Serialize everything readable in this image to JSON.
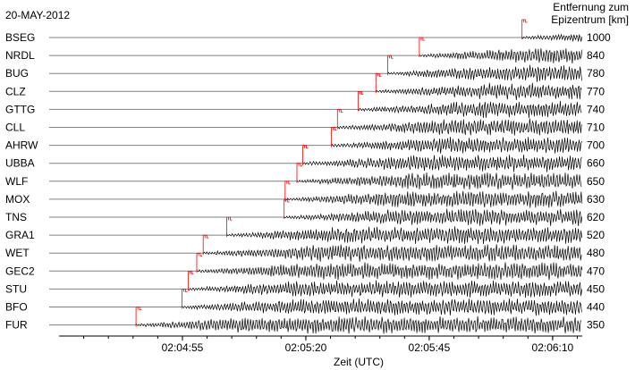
{
  "chart_data": {
    "type": "line",
    "date": "20-MAY-2012",
    "header_line1": "Entfernung zum",
    "header_line2": "Epizentrum [km]",
    "xlabel": "Zeit (UTC)",
    "x_ticks": [
      "02:04:55",
      "02:05:20",
      "02:05:45",
      "02:06:10"
    ],
    "x_tick_seconds": [
      55,
      80,
      105,
      130
    ],
    "xlim_seconds": [
      30,
      136
    ],
    "minor_tick_step_seconds": 5,
    "stations": [
      {
        "name": "BSEG",
        "distance_km": "1000",
        "p_arrival_s": 123.8
      },
      {
        "name": "NRDL",
        "distance_km": "840",
        "p_arrival_s": 103.0
      },
      {
        "name": "BUG",
        "distance_km": "780",
        "p_arrival_s": 96.6
      },
      {
        "name": "CLZ",
        "distance_km": "770",
        "p_arrival_s": 94.2
      },
      {
        "name": "GTTG",
        "distance_km": "740",
        "p_arrival_s": 90.6
      },
      {
        "name": "CLL",
        "distance_km": "710",
        "p_arrival_s": 86.4
      },
      {
        "name": "AHRW",
        "distance_km": "700",
        "p_arrival_s": 85.2
      },
      {
        "name": "UBBA",
        "distance_km": "660",
        "p_arrival_s": 79.4
      },
      {
        "name": "WLF",
        "distance_km": "650",
        "p_arrival_s": 78.2
      },
      {
        "name": "MOX",
        "distance_km": "630",
        "p_arrival_s": 75.8
      },
      {
        "name": "TNS",
        "distance_km": "620",
        "p_arrival_s": 75.6
      },
      {
        "name": "GRA1",
        "distance_km": "520",
        "p_arrival_s": 64.0
      },
      {
        "name": "WET",
        "distance_km": "480",
        "p_arrival_s": 59.2
      },
      {
        "name": "GEC2",
        "distance_km": "470",
        "p_arrival_s": 57.9
      },
      {
        "name": "STU",
        "distance_km": "450",
        "p_arrival_s": 56.2
      },
      {
        "name": "BFO",
        "distance_km": "440",
        "p_arrival_s": 54.9
      },
      {
        "name": "FUR",
        "distance_km": "350",
        "p_arrival_s": 45.6
      }
    ],
    "colors": {
      "trace": "#000000",
      "baseline": "#808080",
      "pick": "#ff0000"
    },
    "grid": false,
    "legend": "none"
  }
}
